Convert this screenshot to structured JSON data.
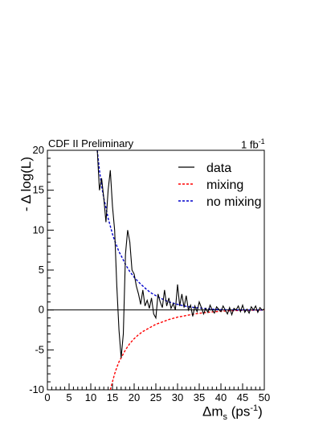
{
  "chart_data": {
    "type": "line",
    "title": "",
    "annotations": {
      "left": "CDF II Preliminary",
      "right_base": "1 fb",
      "right_sup": "-1"
    },
    "xlabel": {
      "base": "Δm",
      "sub": "s",
      "unit_open": " (ps",
      "unit_sup": "-1",
      "unit_close": ")"
    },
    "ylabel": "- Δ log(L)",
    "xlim": [
      0,
      50
    ],
    "ylim": [
      -10,
      20
    ],
    "xticks": [
      0,
      5,
      10,
      15,
      20,
      25,
      30,
      35,
      40,
      45,
      50
    ],
    "yticks": [
      -10,
      -5,
      0,
      5,
      10,
      15,
      20
    ],
    "legend_position": "top-right",
    "series": [
      {
        "name": "data",
        "color": "#000000",
        "style": "solid",
        "x": [
          11.5,
          12.0,
          12.5,
          13.0,
          13.5,
          14.0,
          14.5,
          15.0,
          15.5,
          16.0,
          16.5,
          17.0,
          17.5,
          18.0,
          18.5,
          19.0,
          19.5,
          20.0,
          20.5,
          21.0,
          21.5,
          22.0,
          22.5,
          23.0,
          23.5,
          24.0,
          24.5,
          25.0,
          25.5,
          26.0,
          26.5,
          27.0,
          27.5,
          28.0,
          28.5,
          29.0,
          29.5,
          30.0,
          30.5,
          31.0,
          31.5,
          32.0,
          32.5,
          33.0,
          33.5,
          34.0,
          34.5,
          35.0,
          35.5,
          36.0,
          36.5,
          37.0,
          37.5,
          38.0,
          38.5,
          39.0,
          39.5,
          40.0,
          40.5,
          41.0,
          41.5,
          42.0,
          42.5,
          43.0,
          43.5,
          44.0,
          44.5,
          45.0,
          45.5,
          46.0,
          46.5,
          47.0,
          47.5,
          48.0,
          48.5,
          49.0,
          49.5,
          50.0
        ],
        "y": [
          20.0,
          15.0,
          16.5,
          14.0,
          11.0,
          15.0,
          17.5,
          13.0,
          10.0,
          3.0,
          -2.5,
          -6.0,
          -3.0,
          7.0,
          10.0,
          8.5,
          5.0,
          4.5,
          3.0,
          2.0,
          0.7,
          2.5,
          0.5,
          1.2,
          0.2,
          1.5,
          -0.5,
          -1.0,
          2.0,
          1.0,
          0.3,
          2.5,
          0.5,
          1.5,
          0.2,
          0.8,
          0.0,
          3.2,
          0.5,
          2.0,
          0.3,
          1.8,
          0.0,
          0.6,
          -0.8,
          0.5,
          -0.2,
          1.0,
          0.3,
          -0.5,
          0.2,
          -0.3,
          0.6,
          0.0,
          -0.4,
          0.4,
          0.1,
          -0.2,
          0.5,
          0.0,
          -0.5,
          0.3,
          -0.6,
          0.2,
          0.0,
          0.5,
          -0.2,
          0.6,
          -0.3,
          0.1,
          -0.4,
          0.4,
          0.0,
          0.5,
          -0.3,
          0.3,
          0.0,
          0.1
        ]
      },
      {
        "name": "mixing",
        "color": "#ff0000",
        "style": "dashed",
        "x": [
          14.5,
          15.0,
          15.5,
          16.0,
          16.5,
          17.0,
          18.0,
          19.0,
          20.0,
          21.0,
          22.0,
          23.0,
          24.0,
          25.0,
          26.0,
          28.0,
          30.0,
          32.0,
          34.0,
          36.0,
          38.0,
          40.0,
          42.0,
          45.0,
          48.0,
          50.0
        ],
        "y": [
          -10.0,
          -9.0,
          -8.0,
          -7.2,
          -6.5,
          -6.0,
          -5.0,
          -4.2,
          -3.6,
          -3.1,
          -2.7,
          -2.4,
          -2.1,
          -1.8,
          -1.6,
          -1.2,
          -0.9,
          -0.7,
          -0.5,
          -0.35,
          -0.25,
          -0.15,
          -0.1,
          -0.05,
          -0.02,
          0.0
        ]
      },
      {
        "name": "no mixing",
        "color": "#0000cc",
        "style": "dashed",
        "x": [
          11.5,
          12.0,
          12.5,
          13.0,
          13.5,
          14.0,
          14.5,
          15.0,
          15.5,
          16.0,
          16.5,
          17.0,
          18.0,
          19.0,
          20.0,
          21.0,
          22.0,
          23.0,
          24.0,
          25.0,
          26.0,
          28.0,
          30.0,
          32.0,
          34.0,
          36.0,
          38.0,
          40.0,
          42.0,
          45.0,
          48.0,
          50.0
        ],
        "y": [
          20.0,
          17.5,
          15.5,
          14.0,
          12.8,
          11.5,
          10.5,
          9.5,
          8.7,
          8.0,
          7.3,
          6.8,
          5.7,
          4.8,
          4.1,
          3.5,
          3.0,
          2.5,
          2.1,
          1.8,
          1.5,
          1.0,
          0.7,
          0.45,
          0.3,
          0.2,
          0.1,
          0.05,
          0.02,
          0.0,
          0.0,
          0.0
        ]
      }
    ]
  }
}
